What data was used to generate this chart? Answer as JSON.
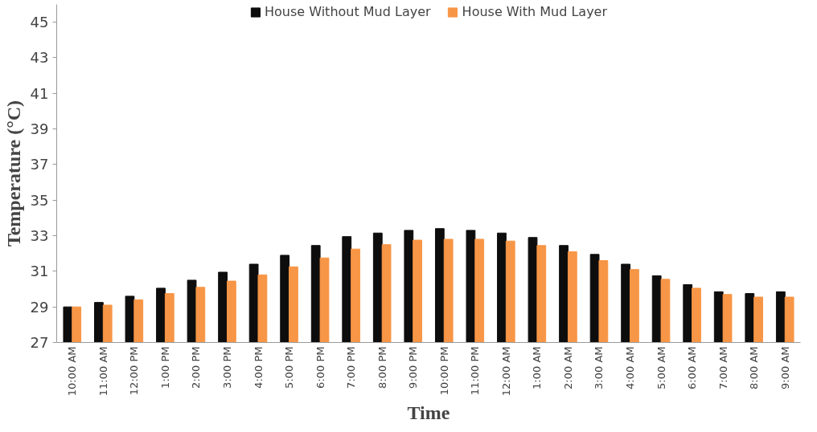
{
  "chart_data": {
    "type": "bar",
    "xlabel": "Time",
    "ylabel": "Temperature (°C)",
    "categories": [
      "10:00 AM",
      "11:00 AM",
      "12:00 PM",
      "1:00 PM",
      "2:00 PM",
      "3:00 PM",
      "4:00 PM",
      "5:00 PM",
      "6:00 PM",
      "7:00 PM",
      "8:00 PM",
      "9:00 PM",
      "10:00 PM",
      "11:00 PM",
      "12:00 AM",
      "1:00 AM",
      "2:00 AM",
      "3:00 AM",
      "4:00 AM",
      "5:00 AM",
      "6:00 AM",
      "7:00 AM",
      "8:00 AM",
      "9:00 AM"
    ],
    "series": [
      {
        "name": "House Without Mud Layer",
        "color": "#0d0d0d",
        "values": [
          29.0,
          29.25,
          29.6,
          30.05,
          30.5,
          30.95,
          31.4,
          31.9,
          32.45,
          32.95,
          33.15,
          33.3,
          33.4,
          33.3,
          33.15,
          32.9,
          32.45,
          31.95,
          31.4,
          30.75,
          30.25,
          29.85,
          29.75,
          29.85
        ]
      },
      {
        "name": "House With Mud Layer",
        "color": "#f79646",
        "values": [
          29.0,
          29.1,
          29.4,
          29.75,
          30.1,
          30.45,
          30.8,
          31.25,
          31.75,
          32.25,
          32.5,
          32.75,
          32.8,
          32.8,
          32.7,
          32.45,
          32.1,
          31.6,
          31.1,
          30.55,
          30.05,
          29.7,
          29.55,
          29.55
        ]
      }
    ],
    "ylim": [
      27,
      46
    ],
    "yticks": [
      27,
      29,
      31,
      33,
      35,
      37,
      39,
      41,
      43,
      45
    ],
    "grid": false,
    "legend": "top"
  }
}
